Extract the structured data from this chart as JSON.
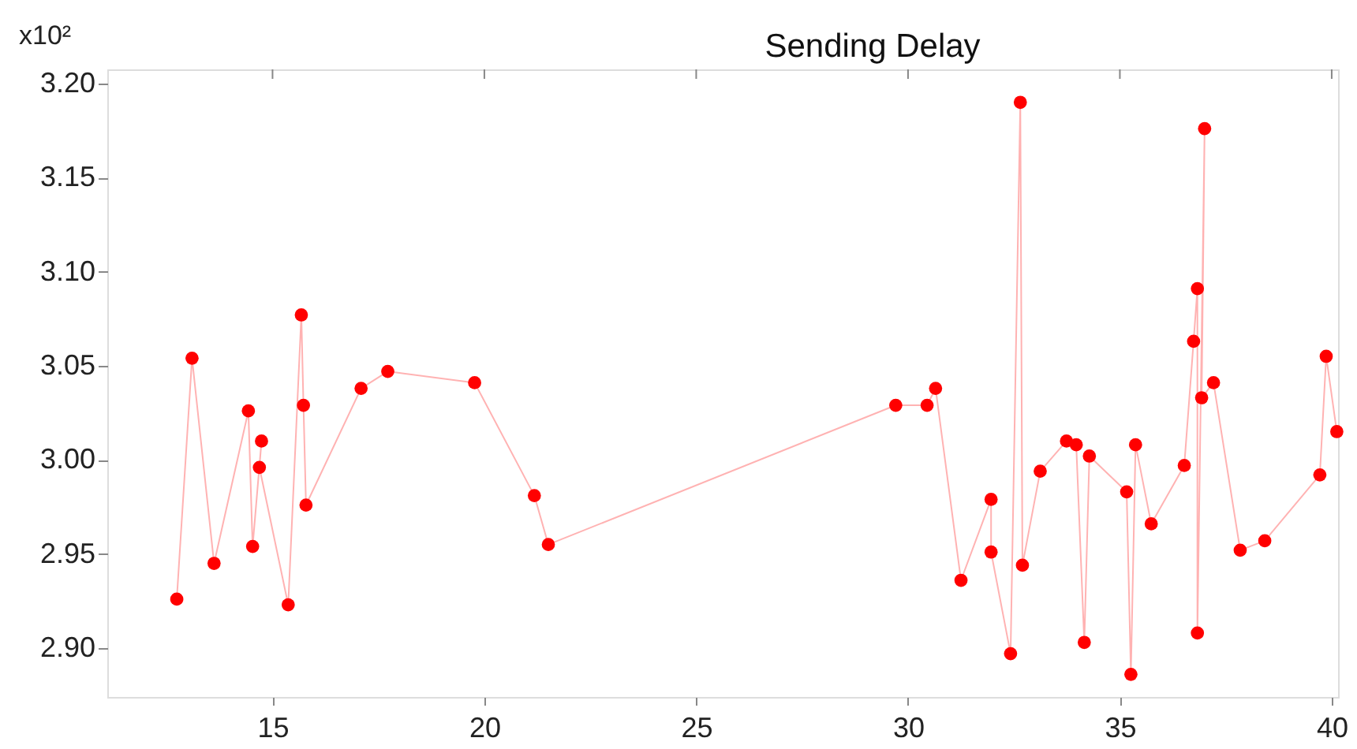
{
  "chart_data": {
    "type": "line",
    "title": "Sending Delay",
    "annotations": [
      "x10²"
    ],
    "x": [
      12.74,
      13.1,
      13.62,
      14.43,
      14.53,
      14.74,
      14.69,
      15.37,
      15.68,
      15.73,
      15.79,
      17.09,
      17.72,
      19.77,
      21.18,
      21.51,
      29.71,
      30.45,
      30.65,
      31.25,
      31.96,
      31.96,
      32.42,
      32.65,
      32.7,
      33.12,
      33.74,
      33.97,
      34.16,
      34.28,
      35.16,
      35.26,
      35.37,
      35.74,
      36.52,
      36.74,
      36.83,
      36.83,
      37.0,
      36.93,
      37.21,
      37.84,
      38.42,
      39.72,
      39.87,
      40.12
    ],
    "series": [
      {
        "color": "#ff0000",
        "values": [
          2.926,
          3.054,
          2.945,
          3.026,
          2.954,
          3.01,
          2.996,
          2.923,
          3.077,
          3.029,
          2.976,
          3.038,
          3.047,
          3.041,
          2.981,
          2.955,
          3.029,
          3.029,
          3.038,
          2.936,
          2.979,
          2.951,
          2.897,
          3.19,
          2.944,
          2.994,
          3.01,
          3.008,
          2.903,
          3.002,
          2.983,
          2.886,
          3.008,
          2.966,
          2.997,
          3.063,
          3.091,
          2.908,
          3.176,
          3.033,
          3.041,
          2.952,
          2.957,
          2.992,
          3.055,
          3.015
        ]
      }
    ],
    "xlim": [
      11.1,
      40.15
    ],
    "xticks": [
      15,
      20,
      25,
      30,
      35,
      40
    ],
    "ylim": [
      2.874,
      3.2075
    ],
    "yticks": [
      {
        "value": 2.9,
        "label": "2.90"
      },
      {
        "value": 2.95,
        "label": "2.95"
      },
      {
        "value": 3.0,
        "label": "3.00"
      },
      {
        "value": 3.05,
        "label": "3.05"
      },
      {
        "value": 3.1,
        "label": "3.10"
      },
      {
        "value": 3.15,
        "label": "3.15"
      },
      {
        "value": 3.2,
        "label": "3.20"
      }
    ],
    "grid": false,
    "marker": "circle",
    "line_style": "solid"
  }
}
